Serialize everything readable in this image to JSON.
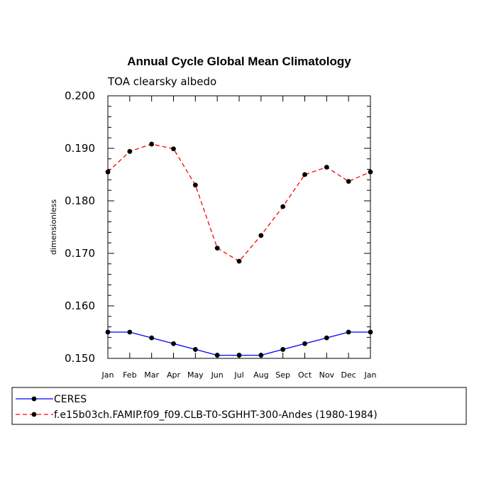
{
  "chart_data": {
    "type": "line",
    "title": "Annual Cycle Global Mean Climatology",
    "subtitle": "TOA clearsky albedo",
    "xlabel": "",
    "ylabel": "dimensionless",
    "categories": [
      "Jan",
      "Feb",
      "Mar",
      "Apr",
      "May",
      "Jun",
      "Jul",
      "Aug",
      "Sep",
      "Oct",
      "Nov",
      "Dec",
      "Jan"
    ],
    "ylim": [
      0.15,
      0.2
    ],
    "yticks": [
      "0.150",
      "0.160",
      "0.170",
      "0.180",
      "0.190",
      "0.200"
    ],
    "ytick_values": [
      0.15,
      0.16,
      0.17,
      0.18,
      0.19,
      0.2
    ],
    "series": [
      {
        "name": "CERES",
        "color": "#0000ff",
        "style": "solid",
        "values": [
          0.155,
          0.155,
          0.1539,
          0.1528,
          0.1517,
          0.1506,
          0.1506,
          0.1506,
          0.1517,
          0.1528,
          0.1539,
          0.155,
          0.155
        ]
      },
      {
        "name": "f.e15b03ch.FAMIP.f09_f09.CLB-T0-SGHHT-300-Andes (1980-1984)",
        "color": "#ff0000",
        "style": "dashed",
        "values": [
          0.1855,
          0.1894,
          0.1908,
          0.1899,
          0.183,
          0.171,
          0.1685,
          0.1734,
          0.1789,
          0.185,
          0.1864,
          0.1837,
          0.1855
        ]
      }
    ],
    "legend": {
      "position": "bottom",
      "entries": [
        "CERES",
        "f.e15b03ch.FAMIP.f09_f09.CLB-T0-SGHHT-300-Andes (1980-1984)"
      ]
    },
    "grid": false
  }
}
